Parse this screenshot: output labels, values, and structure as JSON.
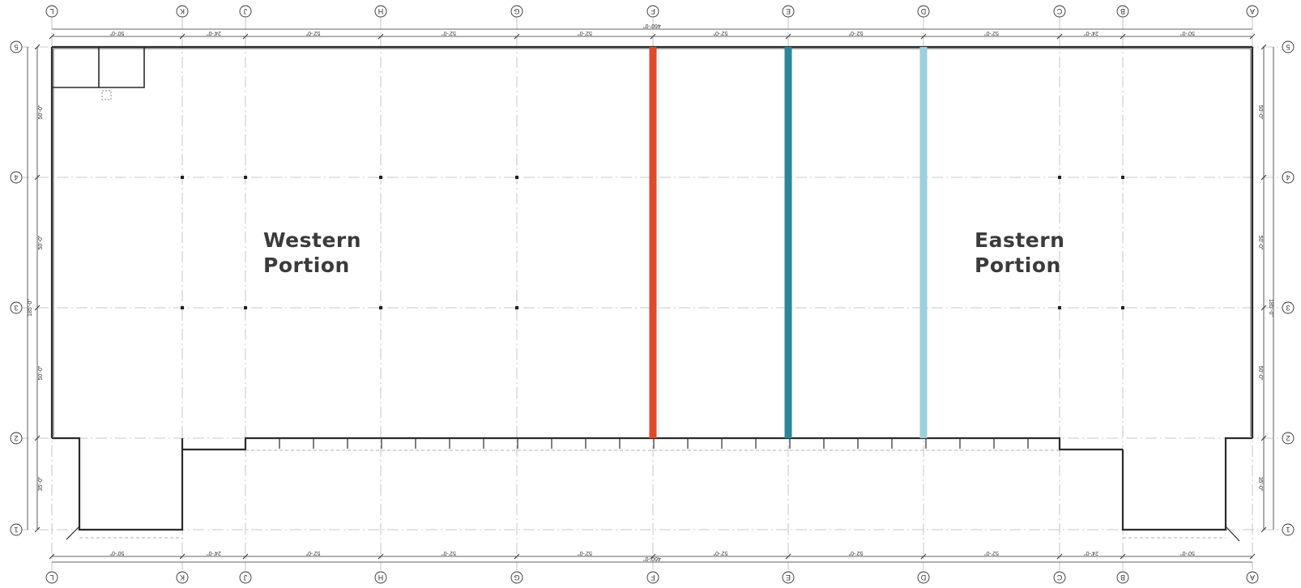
{
  "labels": {
    "western": [
      "Western",
      "Portion"
    ],
    "eastern": [
      "Eastern",
      "Portion"
    ]
  },
  "columns": [
    "L",
    "K",
    "J",
    "H",
    "G",
    "F",
    "E",
    "D",
    "C",
    "B",
    "A"
  ],
  "rows": [
    "5",
    "4",
    "3",
    "2",
    "1"
  ],
  "overall_dim": "460'-0\"",
  "bay_dims": [
    "50'-0\"",
    "24'-0\"",
    "52'-0\"",
    "52'-0\"",
    "52'-0\"",
    "52'-0\"",
    "52'-0\"",
    "52'-0\"",
    "24'-0\"",
    "50'-0\""
  ],
  "row_dims": [
    "50'-0\"",
    "50'-0\"",
    "50'-0\"",
    "35'-0\""
  ],
  "overall_row_dim": "185'-0\"",
  "division_lines": [
    {
      "name": "orange-division-line",
      "color": "#e04a2a",
      "at_column": "F"
    },
    {
      "name": "teal-division-line",
      "color": "#2e8597",
      "at_column": "E"
    },
    {
      "name": "light-blue-division-line",
      "color": "#9ad1dc",
      "at_column": "D"
    }
  ]
}
